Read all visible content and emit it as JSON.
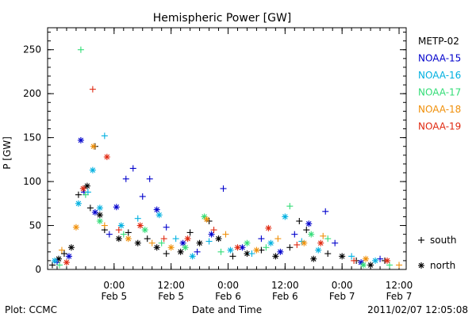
{
  "chart_data": {
    "type": "scatter",
    "title": "Hemispheric Power [GW]",
    "xlabel": "Date and Time",
    "ylabel": "P [GW]",
    "ylim": [
      0,
      275
    ],
    "xlim": [
      "2011-02-04T10:00",
      "2011-02-07T13:30"
    ],
    "yticks": [
      0,
      50,
      100,
      150,
      200,
      250
    ],
    "xticks": [
      {
        "x": "2011-02-05T00:00",
        "lines": [
          "0:00",
          "Feb 5"
        ]
      },
      {
        "x": "2011-02-05T12:00",
        "lines": [
          "12:00",
          "Feb 5"
        ]
      },
      {
        "x": "2011-02-06T00:00",
        "lines": [
          "0:00",
          "Feb 6"
        ]
      },
      {
        "x": "2011-02-06T12:00",
        "lines": [
          "12:00",
          "Feb 6"
        ]
      },
      {
        "x": "2011-02-07T00:00",
        "lines": [
          "0:00",
          "Feb 7"
        ]
      },
      {
        "x": "2011-02-07T12:00",
        "lines": [
          "12:00",
          "Feb 7"
        ]
      }
    ],
    "grid": false,
    "legend": {
      "placement": "right",
      "hemispheres": [
        {
          "marker": "+",
          "label": "south"
        },
        {
          "marker": "*",
          "label": "north"
        }
      ]
    },
    "series": [
      {
        "name": "METP-02",
        "color": "#000000",
        "points": [
          {
            "x": "2011-02-04T11:00",
            "y": 5,
            "m": "+"
          },
          {
            "x": "2011-02-04T12:20",
            "y": 12,
            "m": "*"
          },
          {
            "x": "2011-02-04T13:30",
            "y": 18,
            "m": "+"
          },
          {
            "x": "2011-02-04T15:00",
            "y": 25,
            "m": "*"
          },
          {
            "x": "2011-02-04T16:30",
            "y": 85,
            "m": "+"
          },
          {
            "x": "2011-02-04T17:30",
            "y": 92,
            "m": "+"
          },
          {
            "x": "2011-02-04T18:20",
            "y": 95,
            "m": "*"
          },
          {
            "x": "2011-02-04T19:00",
            "y": 70,
            "m": "+"
          },
          {
            "x": "2011-02-04T20:00",
            "y": 140,
            "m": "+"
          },
          {
            "x": "2011-02-04T21:00",
            "y": 62,
            "m": "*"
          },
          {
            "x": "2011-02-04T22:00",
            "y": 45,
            "m": "+"
          },
          {
            "x": "2011-02-05T01:00",
            "y": 35,
            "m": "*"
          },
          {
            "x": "2011-02-05T03:00",
            "y": 42,
            "m": "+"
          },
          {
            "x": "2011-02-05T05:00",
            "y": 30,
            "m": "*"
          },
          {
            "x": "2011-02-05T07:00",
            "y": 35,
            "m": "+"
          },
          {
            "x": "2011-02-05T09:00",
            "y": 25,
            "m": "*"
          },
          {
            "x": "2011-02-05T11:00",
            "y": 18,
            "m": "+"
          },
          {
            "x": "2011-02-05T14:00",
            "y": 20,
            "m": "*"
          },
          {
            "x": "2011-02-05T16:00",
            "y": 42,
            "m": "+"
          },
          {
            "x": "2011-02-05T18:00",
            "y": 30,
            "m": "*"
          },
          {
            "x": "2011-02-05T20:00",
            "y": 55,
            "m": "+"
          },
          {
            "x": "2011-02-05T22:00",
            "y": 35,
            "m": "*"
          },
          {
            "x": "2011-02-06T01:00",
            "y": 15,
            "m": "+"
          },
          {
            "x": "2011-02-06T04:00",
            "y": 18,
            "m": "*"
          },
          {
            "x": "2011-02-06T07:00",
            "y": 22,
            "m": "+"
          },
          {
            "x": "2011-02-06T10:00",
            "y": 15,
            "m": "*"
          },
          {
            "x": "2011-02-06T13:00",
            "y": 25,
            "m": "+"
          },
          {
            "x": "2011-02-06T15:00",
            "y": 55,
            "m": "+"
          },
          {
            "x": "2011-02-06T16:30",
            "y": 45,
            "m": "+"
          },
          {
            "x": "2011-02-06T18:00",
            "y": 12,
            "m": "*"
          },
          {
            "x": "2011-02-06T21:00",
            "y": 18,
            "m": "+"
          },
          {
            "x": "2011-02-07T00:00",
            "y": 15,
            "m": "*"
          },
          {
            "x": "2011-02-07T03:00",
            "y": 10,
            "m": "+"
          },
          {
            "x": "2011-02-07T06:00",
            "y": 5,
            "m": "*"
          },
          {
            "x": "2011-02-07T09:00",
            "y": 10,
            "m": "+"
          }
        ]
      },
      {
        "name": "NOAA-15",
        "color": "#0000cc",
        "points": [
          {
            "x": "2011-02-04T12:00",
            "y": 8,
            "m": "+"
          },
          {
            "x": "2011-02-04T14:30",
            "y": 15,
            "m": "*"
          },
          {
            "x": "2011-02-04T17:00",
            "y": 147,
            "m": "*"
          },
          {
            "x": "2011-02-04T17:40",
            "y": 88,
            "m": "+"
          },
          {
            "x": "2011-02-04T20:00",
            "y": 65,
            "m": "*"
          },
          {
            "x": "2011-02-04T23:00",
            "y": 40,
            "m": "+"
          },
          {
            "x": "2011-02-05T00:30",
            "y": 71,
            "m": "*"
          },
          {
            "x": "2011-02-05T02:30",
            "y": 103,
            "m": "+"
          },
          {
            "x": "2011-02-05T04:00",
            "y": 115,
            "m": "+"
          },
          {
            "x": "2011-02-05T06:00",
            "y": 83,
            "m": "+"
          },
          {
            "x": "2011-02-05T07:30",
            "y": 103,
            "m": "+"
          },
          {
            "x": "2011-02-05T09:00",
            "y": 68,
            "m": "*"
          },
          {
            "x": "2011-02-05T11:00",
            "y": 48,
            "m": "+"
          },
          {
            "x": "2011-02-05T14:30",
            "y": 30,
            "m": "*"
          },
          {
            "x": "2011-02-05T17:30",
            "y": 20,
            "m": "+"
          },
          {
            "x": "2011-02-05T20:30",
            "y": 40,
            "m": "*"
          },
          {
            "x": "2011-02-05T23:00",
            "y": 92,
            "m": "+"
          },
          {
            "x": "2011-02-06T03:00",
            "y": 25,
            "m": "*"
          },
          {
            "x": "2011-02-06T07:00",
            "y": 35,
            "m": "+"
          },
          {
            "x": "2011-02-06T11:00",
            "y": 20,
            "m": "*"
          },
          {
            "x": "2011-02-06T14:00",
            "y": 40,
            "m": "+"
          },
          {
            "x": "2011-02-06T17:00",
            "y": 52,
            "m": "*"
          },
          {
            "x": "2011-02-06T20:30",
            "y": 66,
            "m": "+"
          },
          {
            "x": "2011-02-06T22:30",
            "y": 30,
            "m": "+"
          },
          {
            "x": "2011-02-07T04:00",
            "y": 8,
            "m": "*"
          },
          {
            "x": "2011-02-07T08:00",
            "y": 12,
            "m": "+"
          }
        ]
      },
      {
        "name": "NOAA-16",
        "color": "#00b0e0",
        "points": [
          {
            "x": "2011-02-04T11:30",
            "y": 10,
            "m": "*"
          },
          {
            "x": "2011-02-04T16:30",
            "y": 75,
            "m": "*"
          },
          {
            "x": "2011-02-04T18:30",
            "y": 88,
            "m": "+"
          },
          {
            "x": "2011-02-04T19:30",
            "y": 113,
            "m": "*"
          },
          {
            "x": "2011-02-04T22:00",
            "y": 152,
            "m": "+"
          },
          {
            "x": "2011-02-04T21:00",
            "y": 70,
            "m": "*"
          },
          {
            "x": "2011-02-05T01:30",
            "y": 50,
            "m": "*"
          },
          {
            "x": "2011-02-05T05:00",
            "y": 58,
            "m": "+"
          },
          {
            "x": "2011-02-05T09:30",
            "y": 62,
            "m": "*"
          },
          {
            "x": "2011-02-05T13:00",
            "y": 35,
            "m": "+"
          },
          {
            "x": "2011-02-05T16:30",
            "y": 15,
            "m": "*"
          },
          {
            "x": "2011-02-05T20:00",
            "y": 32,
            "m": "+"
          },
          {
            "x": "2011-02-06T00:30",
            "y": 22,
            "m": "*"
          },
          {
            "x": "2011-02-06T05:00",
            "y": 18,
            "m": "+"
          },
          {
            "x": "2011-02-06T09:00",
            "y": 30,
            "m": "*"
          },
          {
            "x": "2011-02-06T12:00",
            "y": 60,
            "m": "*"
          },
          {
            "x": "2011-02-06T15:30",
            "y": 32,
            "m": "+"
          },
          {
            "x": "2011-02-06T19:00",
            "y": 22,
            "m": "*"
          },
          {
            "x": "2011-02-07T02:00",
            "y": 15,
            "m": "+"
          },
          {
            "x": "2011-02-07T07:00",
            "y": 10,
            "m": "*"
          }
        ]
      },
      {
        "name": "NOAA-17",
        "color": "#33dd77",
        "points": [
          {
            "x": "2011-02-04T12:30",
            "y": 5,
            "m": "+"
          },
          {
            "x": "2011-02-04T17:00",
            "y": 250,
            "m": "+"
          },
          {
            "x": "2011-02-04T18:00",
            "y": 85,
            "m": "+"
          },
          {
            "x": "2011-02-04T21:00",
            "y": 55,
            "m": "*"
          },
          {
            "x": "2011-02-05T02:00",
            "y": 40,
            "m": "+"
          },
          {
            "x": "2011-02-05T06:30",
            "y": 45,
            "m": "*"
          },
          {
            "x": "2011-02-05T10:00",
            "y": 30,
            "m": "+"
          },
          {
            "x": "2011-02-05T15:00",
            "y": 25,
            "m": "*"
          },
          {
            "x": "2011-02-05T19:00",
            "y": 60,
            "m": "*"
          },
          {
            "x": "2011-02-05T22:30",
            "y": 20,
            "m": "+"
          },
          {
            "x": "2011-02-06T04:00",
            "y": 30,
            "m": "*"
          },
          {
            "x": "2011-02-06T08:00",
            "y": 25,
            "m": "+"
          },
          {
            "x": "2011-02-06T13:00",
            "y": 72,
            "m": "+"
          },
          {
            "x": "2011-02-06T17:30",
            "y": 40,
            "m": "*"
          },
          {
            "x": "2011-02-06T21:00",
            "y": 35,
            "m": "+"
          },
          {
            "x": "2011-02-07T04:30",
            "y": 5,
            "m": "*"
          },
          {
            "x": "2011-02-07T10:00",
            "y": 5,
            "m": "+"
          }
        ]
      },
      {
        "name": "NOAA-18",
        "color": "#f0900a",
        "points": [
          {
            "x": "2011-02-04T13:00",
            "y": 22,
            "m": "+"
          },
          {
            "x": "2011-02-04T16:00",
            "y": 48,
            "m": "*"
          },
          {
            "x": "2011-02-04T19:40",
            "y": 140,
            "m": "*"
          },
          {
            "x": "2011-02-04T22:00",
            "y": 50,
            "m": "+"
          },
          {
            "x": "2011-02-05T03:00",
            "y": 35,
            "m": "*"
          },
          {
            "x": "2011-02-05T08:00",
            "y": 30,
            "m": "+"
          },
          {
            "x": "2011-02-05T12:00",
            "y": 25,
            "m": "*"
          },
          {
            "x": "2011-02-05T19:30",
            "y": 57,
            "m": "*"
          },
          {
            "x": "2011-02-05T23:30",
            "y": 40,
            "m": "+"
          },
          {
            "x": "2011-02-06T06:00",
            "y": 22,
            "m": "*"
          },
          {
            "x": "2011-02-06T10:30",
            "y": 35,
            "m": "+"
          },
          {
            "x": "2011-02-06T16:00",
            "y": 30,
            "m": "*"
          },
          {
            "x": "2011-02-06T20:00",
            "y": 38,
            "m": "+"
          },
          {
            "x": "2011-02-07T05:00",
            "y": 12,
            "m": "*"
          },
          {
            "x": "2011-02-07T12:00",
            "y": 5,
            "m": "+"
          }
        ]
      },
      {
        "name": "NOAA-19",
        "color": "#e02810",
        "points": [
          {
            "x": "2011-02-04T14:00",
            "y": 8,
            "m": "*"
          },
          {
            "x": "2011-02-04T17:30",
            "y": 92,
            "m": "*"
          },
          {
            "x": "2011-02-04T19:30",
            "y": 205,
            "m": "+"
          },
          {
            "x": "2011-02-04T22:30",
            "y": 128,
            "m": "*"
          },
          {
            "x": "2011-02-05T01:00",
            "y": 45,
            "m": "+"
          },
          {
            "x": "2011-02-05T05:30",
            "y": 50,
            "m": "*"
          },
          {
            "x": "2011-02-05T10:30",
            "y": 35,
            "m": "+"
          },
          {
            "x": "2011-02-05T15:30",
            "y": 35,
            "m": "*"
          },
          {
            "x": "2011-02-05T21:00",
            "y": 45,
            "m": "+"
          },
          {
            "x": "2011-02-06T02:00",
            "y": 25,
            "m": "*"
          },
          {
            "x": "2011-02-06T08:30",
            "y": 47,
            "m": "*"
          },
          {
            "x": "2011-02-06T14:30",
            "y": 28,
            "m": "+"
          },
          {
            "x": "2011-02-06T19:30",
            "y": 30,
            "m": "*"
          },
          {
            "x": "2011-02-07T02:30",
            "y": 10,
            "m": "+"
          },
          {
            "x": "2011-02-07T09:30",
            "y": 10,
            "m": "*"
          }
        ]
      }
    ]
  },
  "footer": {
    "plot_credit": "Plot: CCMC",
    "timestamp": "2011/02/07 12:05:08"
  }
}
